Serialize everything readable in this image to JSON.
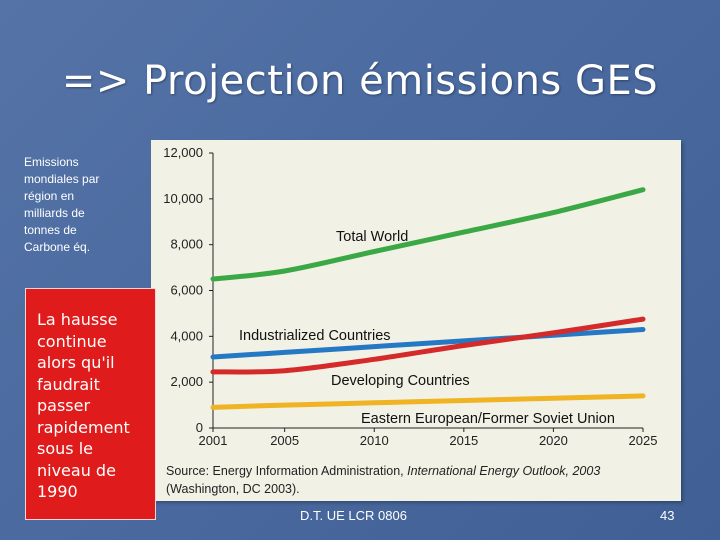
{
  "slide": {
    "title": "=> Projection émissions GES",
    "side_note_lines": [
      "Emissions",
      "mondiales par",
      "région en",
      "milliards de",
      "tonnes de",
      "Carbone éq."
    ],
    "callout_lines": [
      "La hausse",
      "continue",
      "alors qu'il",
      "faudrait",
      "passer",
      "rapidement",
      "sous le",
      "niveau de",
      "1990"
    ],
    "footer_center": "D.T. UE LCR 0806",
    "footer_page": "43"
  },
  "colors": {
    "background": "#4a6aa0",
    "callout": "#e01b1b",
    "total_world": "#3aa845",
    "industrialized": "#2478c4",
    "developing": "#d42a2a",
    "eastern_european": "#f0b323"
  },
  "chart_data": {
    "type": "line",
    "x": [
      2001,
      2005,
      2010,
      2015,
      2020,
      2025
    ],
    "x_tick_labels": [
      "2001",
      "2005",
      "2010",
      "2015",
      "2020",
      "2025"
    ],
    "y_tick_labels": [
      "0",
      "2,000",
      "4,000",
      "6,000",
      "8,000",
      "10,000",
      "12,000"
    ],
    "ylim": [
      0,
      12000
    ],
    "grid": false,
    "series": [
      {
        "name": "Total World",
        "values": [
          6500,
          6850,
          7700,
          8550,
          9400,
          10400
        ]
      },
      {
        "name": "Industrialized Countries",
        "values": [
          3100,
          3300,
          3550,
          3800,
          4050,
          4300
        ]
      },
      {
        "name": "Developing Countries",
        "values": [
          2450,
          2500,
          3000,
          3600,
          4150,
          4750
        ]
      },
      {
        "name": "Eastern European/Former Soviet Union",
        "values": [
          900,
          1000,
          1100,
          1200,
          1300,
          1400
        ]
      }
    ],
    "source_line1_prefix": "Source: Energy Information Administration, ",
    "source_line1_italic": "International Energy Outlook, 2003",
    "source_line2": "(Washington, DC 2003)."
  }
}
